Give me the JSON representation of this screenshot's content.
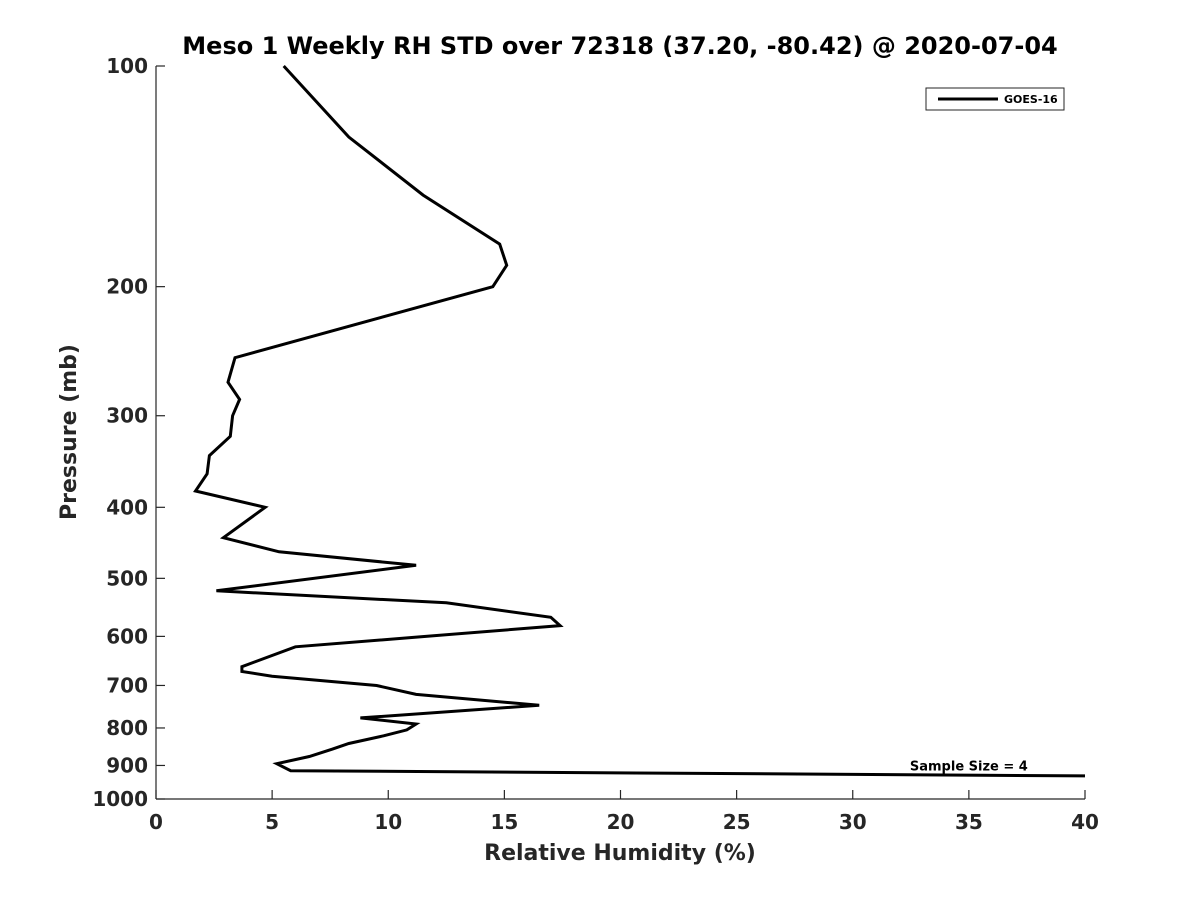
{
  "chart_data": {
    "type": "line",
    "title": "Meso 1 Weekly RH STD over 72318 (37.20, -80.42) @ 2020-07-04",
    "xlabel": "Relative Humidity (%)",
    "ylabel": "Pressure (mb)",
    "xlim": [
      0,
      40
    ],
    "ylim": [
      100,
      1000
    ],
    "y_scale": "log",
    "y_reversed": true,
    "x_ticks": [
      0,
      5,
      10,
      15,
      20,
      25,
      30,
      35,
      40
    ],
    "y_ticks": [
      100,
      200,
      300,
      400,
      500,
      600,
      700,
      800,
      900,
      1000
    ],
    "grid": false,
    "legend_position": "top-right",
    "series": [
      {
        "name": "GOES-16",
        "color": "#000000",
        "points": [
          [
            5.5,
            100
          ],
          [
            8.3,
            125
          ],
          [
            11.5,
            150
          ],
          [
            14.8,
            175
          ],
          [
            15.1,
            187
          ],
          [
            14.5,
            200
          ],
          [
            3.4,
            250
          ],
          [
            3.1,
            270
          ],
          [
            3.6,
            285
          ],
          [
            3.3,
            300
          ],
          [
            3.2,
            320
          ],
          [
            2.3,
            340
          ],
          [
            2.2,
            360
          ],
          [
            1.7,
            380
          ],
          [
            4.7,
            400
          ],
          [
            2.9,
            440
          ],
          [
            5.3,
            460
          ],
          [
            11.2,
            480
          ],
          [
            2.6,
            520
          ],
          [
            12.5,
            540
          ],
          [
            17.0,
            565
          ],
          [
            17.4,
            580
          ],
          [
            6.0,
            620
          ],
          [
            3.7,
            660
          ],
          [
            3.7,
            670
          ],
          [
            5.0,
            680
          ],
          [
            9.5,
            700
          ],
          [
            11.2,
            720
          ],
          [
            16.5,
            745
          ],
          [
            8.8,
            775
          ],
          [
            11.2,
            790
          ],
          [
            10.8,
            805
          ],
          [
            9.8,
            820
          ],
          [
            8.3,
            840
          ],
          [
            7.6,
            855
          ],
          [
            6.6,
            875
          ],
          [
            5.2,
            895
          ],
          [
            5.8,
            915
          ],
          [
            40,
            930
          ]
        ]
      }
    ],
    "annotations": [
      {
        "text": "Sample Size = 4",
        "x": 35,
        "y": 900
      }
    ]
  }
}
